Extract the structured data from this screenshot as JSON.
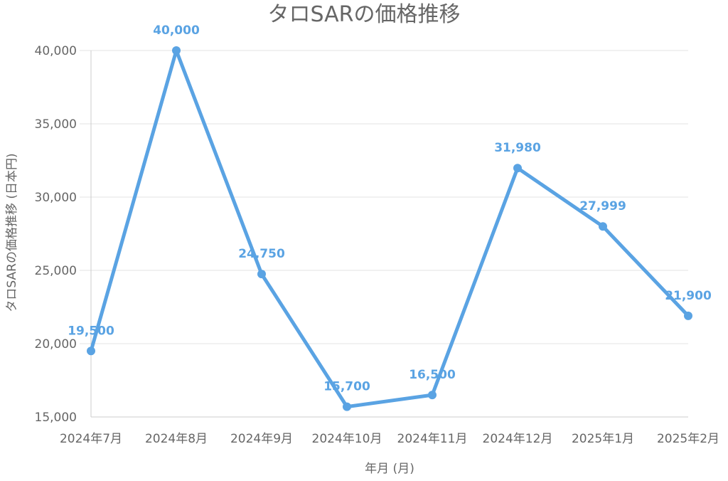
{
  "chart_data": {
    "type": "line",
    "title": "タロSARの価格推移",
    "xlabel": "年月 (月)",
    "ylabel": "タロSARの価格推移 (日本円)",
    "categories": [
      "2024年7月",
      "2024年8月",
      "2024年9月",
      "2024年10月",
      "2024年11月",
      "2024年12月",
      "2025年1月",
      "2025年2月"
    ],
    "series": [
      {
        "values": [
          19500,
          40000,
          24750,
          15700,
          16500,
          31980,
          27999,
          21900
        ],
        "labels": [
          "19,500",
          "40,000",
          "24,750",
          "15,700",
          "16,500",
          "31,980",
          "27,999",
          "21,900"
        ]
      }
    ],
    "ylim": [
      15000,
      40000
    ],
    "yticks": [
      15000,
      20000,
      25000,
      30000,
      35000,
      40000
    ],
    "ytick_labels": [
      "15,000",
      "20,000",
      "25,000",
      "30,000",
      "35,000",
      "40,000"
    ],
    "grid": true,
    "legend": "none",
    "colors": {
      "series": "#5aa3e3",
      "text": "#666666",
      "grid": "#e3e3e3"
    }
  }
}
